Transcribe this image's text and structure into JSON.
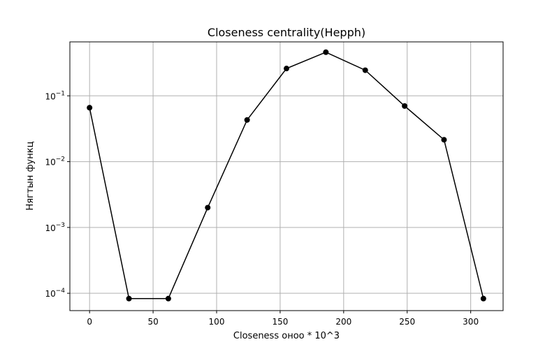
{
  "chart_data": {
    "type": "line",
    "title": "Closeness centrality(Hepph)",
    "xlabel": "Closeness оноо * 10^3",
    "ylabel": "Нягтын функц",
    "x": [
      0,
      31,
      62,
      93,
      124,
      155,
      186,
      217,
      248,
      279,
      310
    ],
    "series": [
      {
        "values": [
          0.066,
          8.3e-05,
          8.3e-05,
          0.002,
          0.043,
          0.26,
          0.46,
          0.245,
          0.07,
          0.0215,
          8.3e-05
        ]
      }
    ],
    "xlim": [
      -15.5,
      325.5
    ],
    "ylim": [
      5.45e-05,
      0.66
    ],
    "yscale": "log",
    "x_ticks": [
      {
        "value": 0,
        "label": "0"
      },
      {
        "value": 50,
        "label": "50"
      },
      {
        "value": 100,
        "label": "100"
      },
      {
        "value": 150,
        "label": "150"
      },
      {
        "value": 200,
        "label": "200"
      },
      {
        "value": 250,
        "label": "250"
      },
      {
        "value": 300,
        "label": "300"
      }
    ],
    "y_ticks": [
      {
        "value": 0.0001,
        "base": "10",
        "exp": "−4"
      },
      {
        "value": 0.001,
        "base": "10",
        "exp": "−3"
      },
      {
        "value": 0.01,
        "base": "10",
        "exp": "−2"
      },
      {
        "value": 0.1,
        "base": "10",
        "exp": "−1"
      }
    ],
    "grid": true,
    "line_color": "#000000",
    "marker": "circle"
  }
}
